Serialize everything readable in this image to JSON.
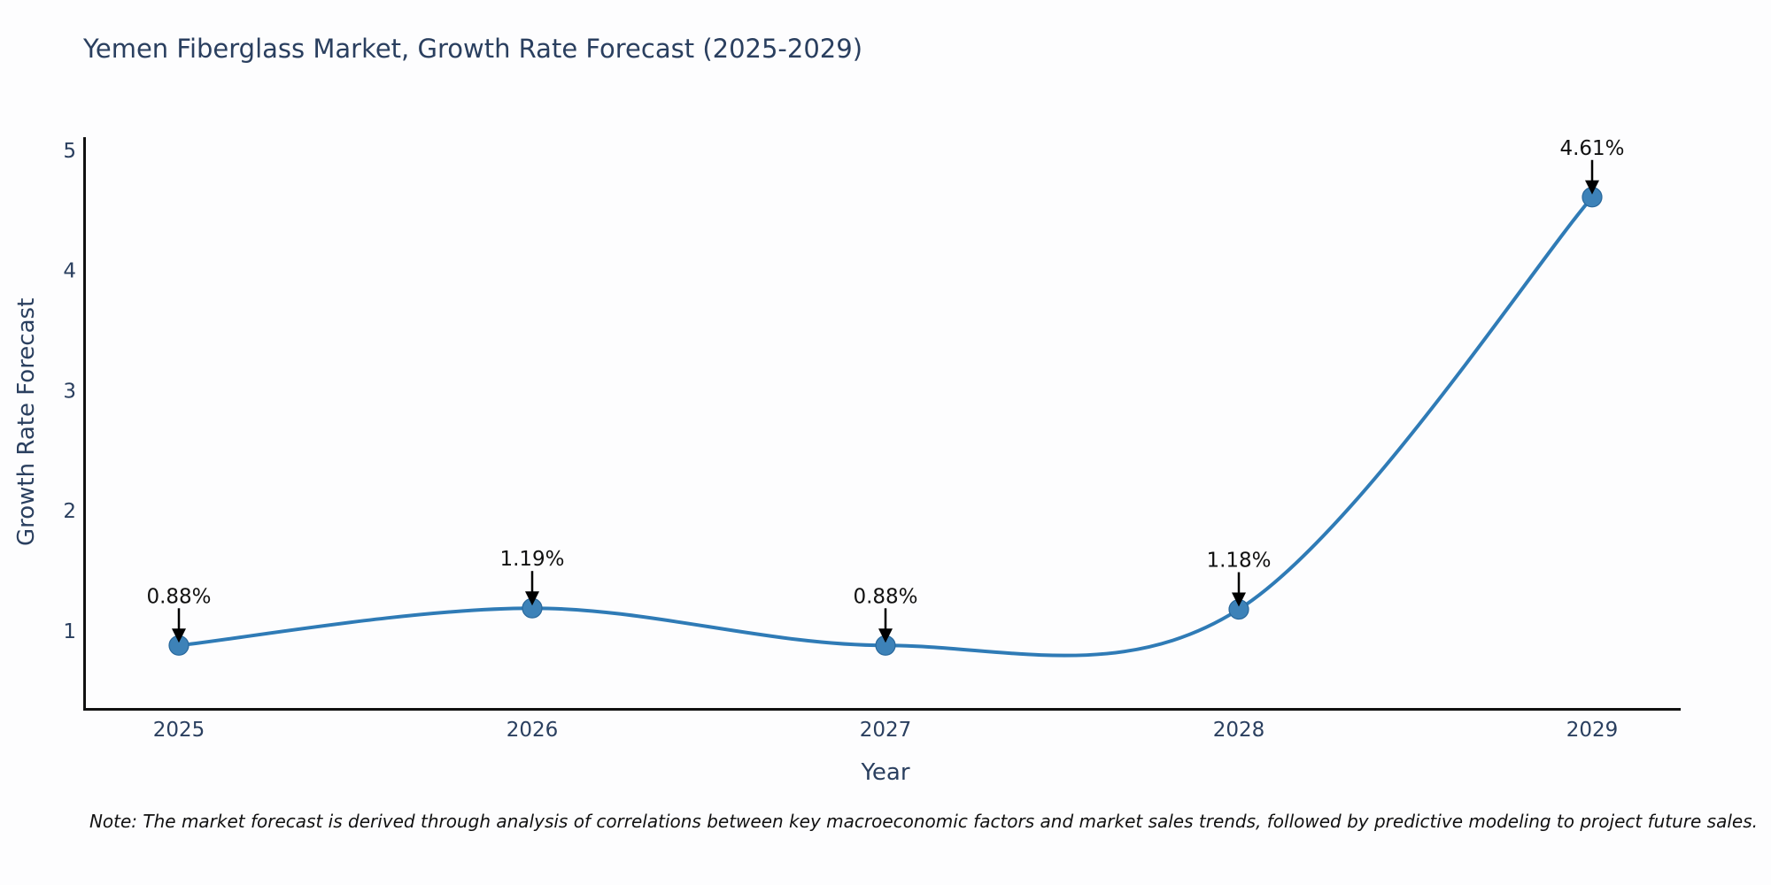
{
  "header": {
    "title": "Yemen Fiberglass Market, Growth Rate Forecast (2025-2029)"
  },
  "chart_data": {
    "type": "line",
    "title": "Yemen Fiberglass Market, Growth Rate Forecast (2025-2029)",
    "categories": [
      "2025",
      "2026",
      "2027",
      "2028",
      "2029"
    ],
    "values": [
      0.88,
      1.19,
      0.88,
      1.18,
      4.61
    ],
    "point_labels": [
      "0.88%",
      "1.19%",
      "0.88%",
      "1.18%",
      "4.61%"
    ],
    "xlabel": "Year",
    "ylabel": "Growth Rate Forecast",
    "yticks": [
      1,
      2,
      3,
      4,
      5
    ],
    "ylim": [
      0.36,
      5.12
    ],
    "line_shape": "spline",
    "grid": false,
    "legend": "none",
    "colors": {
      "line": "#2f7bb6",
      "marker": "#3d82b8",
      "marker_edge": "#29689c",
      "axis": "#111111",
      "tick_text": "#2a3f5f",
      "title_text": "#2a3f5f",
      "annotation_text": "#111111",
      "arrow": "#000000",
      "background": "#fdfdfe"
    }
  },
  "footnote": {
    "text": "Note: The market forecast is derived through analysis of correlations between key macroeconomic factors and market sales trends, followed by predictive modeling to project future sales."
  }
}
